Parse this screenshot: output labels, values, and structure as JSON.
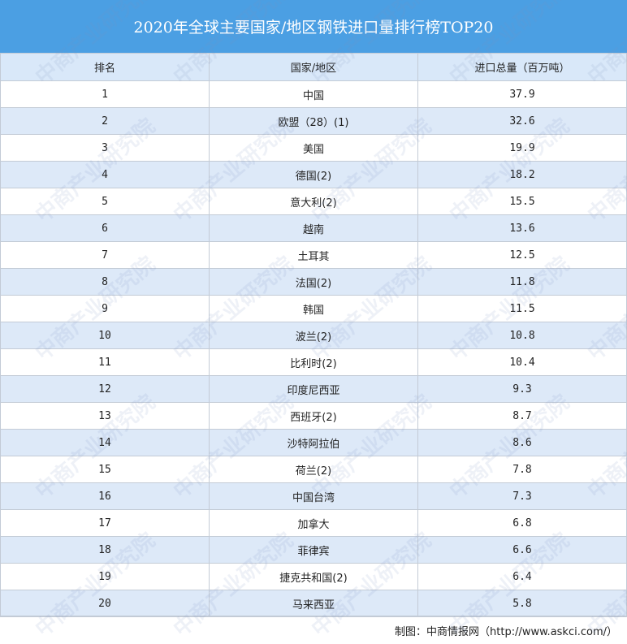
{
  "title": "2020年全球主要国家/地区钢铁进口量排行榜TOP20",
  "headers": [
    "排名",
    "国家/地区",
    "进口总量（百万吨）"
  ],
  "rows": [
    [
      "1",
      "中国",
      "37.9"
    ],
    [
      "2",
      "欧盟（28）(1)",
      "32.6"
    ],
    [
      "3",
      "美国",
      "19.9"
    ],
    [
      "4",
      "德国(2)",
      "18.2"
    ],
    [
      "5",
      "意大利(2)",
      "15.5"
    ],
    [
      "6",
      "越南",
      "13.6"
    ],
    [
      "7",
      "土耳其",
      "12.5"
    ],
    [
      "8",
      "法国(2)",
      "11.8"
    ],
    [
      "9",
      "韩国",
      "11.5"
    ],
    [
      "10",
      "波兰(2)",
      "10.8"
    ],
    [
      "11",
      "比利时(2)",
      "10.4"
    ],
    [
      "12",
      "印度尼西亚",
      "9.3"
    ],
    [
      "13",
      "西班牙(2)",
      "8.7"
    ],
    [
      "14",
      "沙特阿拉伯",
      "8.6"
    ],
    [
      "15",
      "荷兰(2)",
      "7.8"
    ],
    [
      "16",
      "中国台湾",
      "7.3"
    ],
    [
      "17",
      "加拿大",
      "6.8"
    ],
    [
      "18",
      "菲律宾",
      "6.6"
    ],
    [
      "19",
      "捷克共和国(2)",
      "6.4"
    ],
    [
      "20",
      "马来西亚",
      "5.8"
    ]
  ],
  "footer": "制图：中商情报网（http://www.askci.com/）",
  "watermark": "中商产业研究院",
  "colors": {
    "title_bg": "#4b9fe3",
    "header_bg": "#d9e8f9",
    "alt_row_bg": "#dde9f8"
  }
}
